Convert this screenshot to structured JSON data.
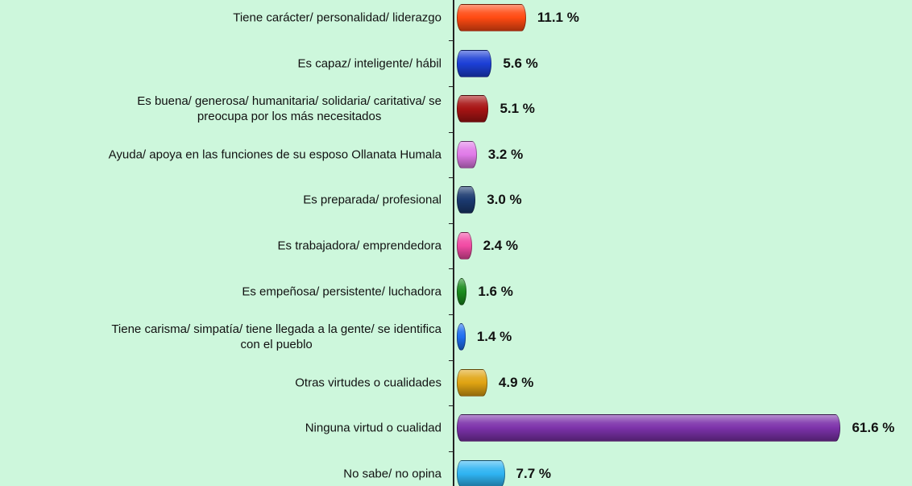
{
  "chart_data": {
    "type": "bar",
    "orientation": "horizontal",
    "categories": [
      "Tiene carácter/ personalidad/ liderazgo",
      "Es capaz/ inteligente/ hábil",
      "Es buena/ generosa/ humanitaria/ solidaria/ caritativa/ se\npreocupa por los más necesitados",
      "Ayuda/ apoya en las funciones de su esposo Ollanata Humala",
      "Es preparada/ profesional",
      "Es trabajadora/ emprendedora",
      "Es empeñosa/ persistente/ luchadora",
      "Tiene carisma/ simpatía/ tiene llegada a la gente/ se identifica\ncon el pueblo",
      "Otras virtudes o cualidades",
      "Ninguna virtud o cualidad",
      "No sabe/ no opina"
    ],
    "values": [
      11.1,
      5.6,
      5.1,
      3.2,
      3.0,
      2.4,
      1.6,
      1.4,
      4.9,
      61.6,
      7.7
    ],
    "value_labels": [
      "11.1 %",
      "5.6 %",
      "5.1 %",
      "3.2 %",
      "3.0 %",
      "2.4 %",
      "1.6 %",
      "1.4 %",
      "4.9 %",
      "61.6 %",
      "7.7 %"
    ],
    "colors": [
      "#ff4a12",
      "#1c3fd6",
      "#a81414",
      "#e07ae8",
      "#1b3a70",
      "#f24aa4",
      "#1a8c1e",
      "#1f6ff0",
      "#e0a412",
      "#7c32aa",
      "#2fb4f2"
    ],
    "xlim": [
      0,
      64
    ]
  }
}
